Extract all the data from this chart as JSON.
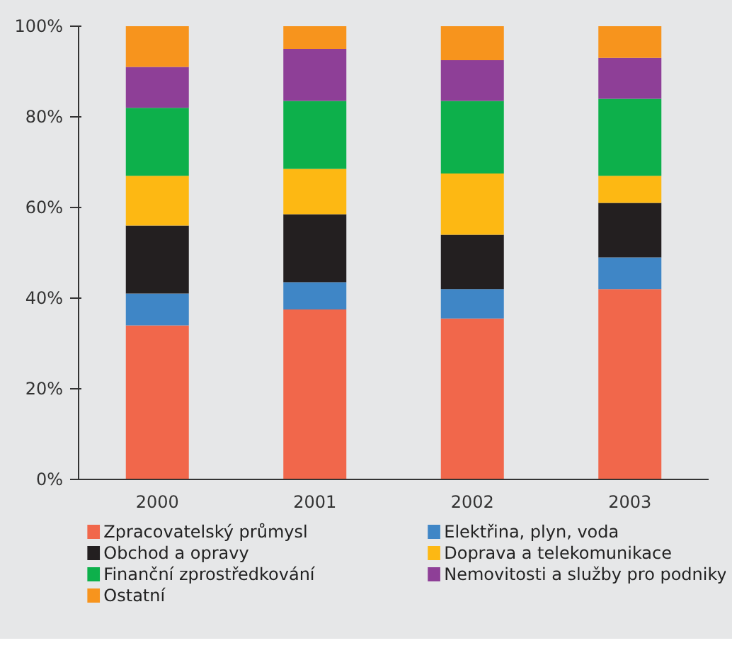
{
  "chart_data": {
    "type": "bar",
    "stacked": true,
    "categories": [
      "2000",
      "2001",
      "2002",
      "2003"
    ],
    "series": [
      {
        "name": "Zpracovatelský průmysl",
        "color": "#f1674b",
        "values": [
          34,
          37.5,
          35.5,
          42
        ]
      },
      {
        "name": "Elektřina, plyn, voda",
        "color": "#3f86c6",
        "values": [
          7,
          6,
          6.5,
          7
        ]
      },
      {
        "name": "Obchod a opravy",
        "color": "#231f20",
        "values": [
          15,
          15,
          12,
          12
        ]
      },
      {
        "name": "Doprava a telekomunikace",
        "color": "#fdb813",
        "values": [
          11,
          10,
          13.5,
          6
        ]
      },
      {
        "name": "Finanční zprostředkování",
        "color": "#0db04b",
        "values": [
          15,
          15,
          16,
          17
        ]
      },
      {
        "name": "Nemovitosti a služby pro podniky",
        "color": "#8e3f97",
        "values": [
          9,
          11.5,
          9,
          9
        ]
      },
      {
        "name": "Ostatní",
        "color": "#f7941d",
        "values": [
          9,
          5,
          7.5,
          7
        ]
      }
    ],
    "ylim": [
      0,
      100
    ],
    "yticks": [
      {
        "value": 0,
        "label": "0%"
      },
      {
        "value": 20,
        "label": "20%"
      },
      {
        "value": 40,
        "label": "40%"
      },
      {
        "value": 60,
        "label": "60%"
      },
      {
        "value": 80,
        "label": "80%"
      },
      {
        "value": 100,
        "label": "100%"
      }
    ],
    "grid": false,
    "legend": "bottom"
  }
}
